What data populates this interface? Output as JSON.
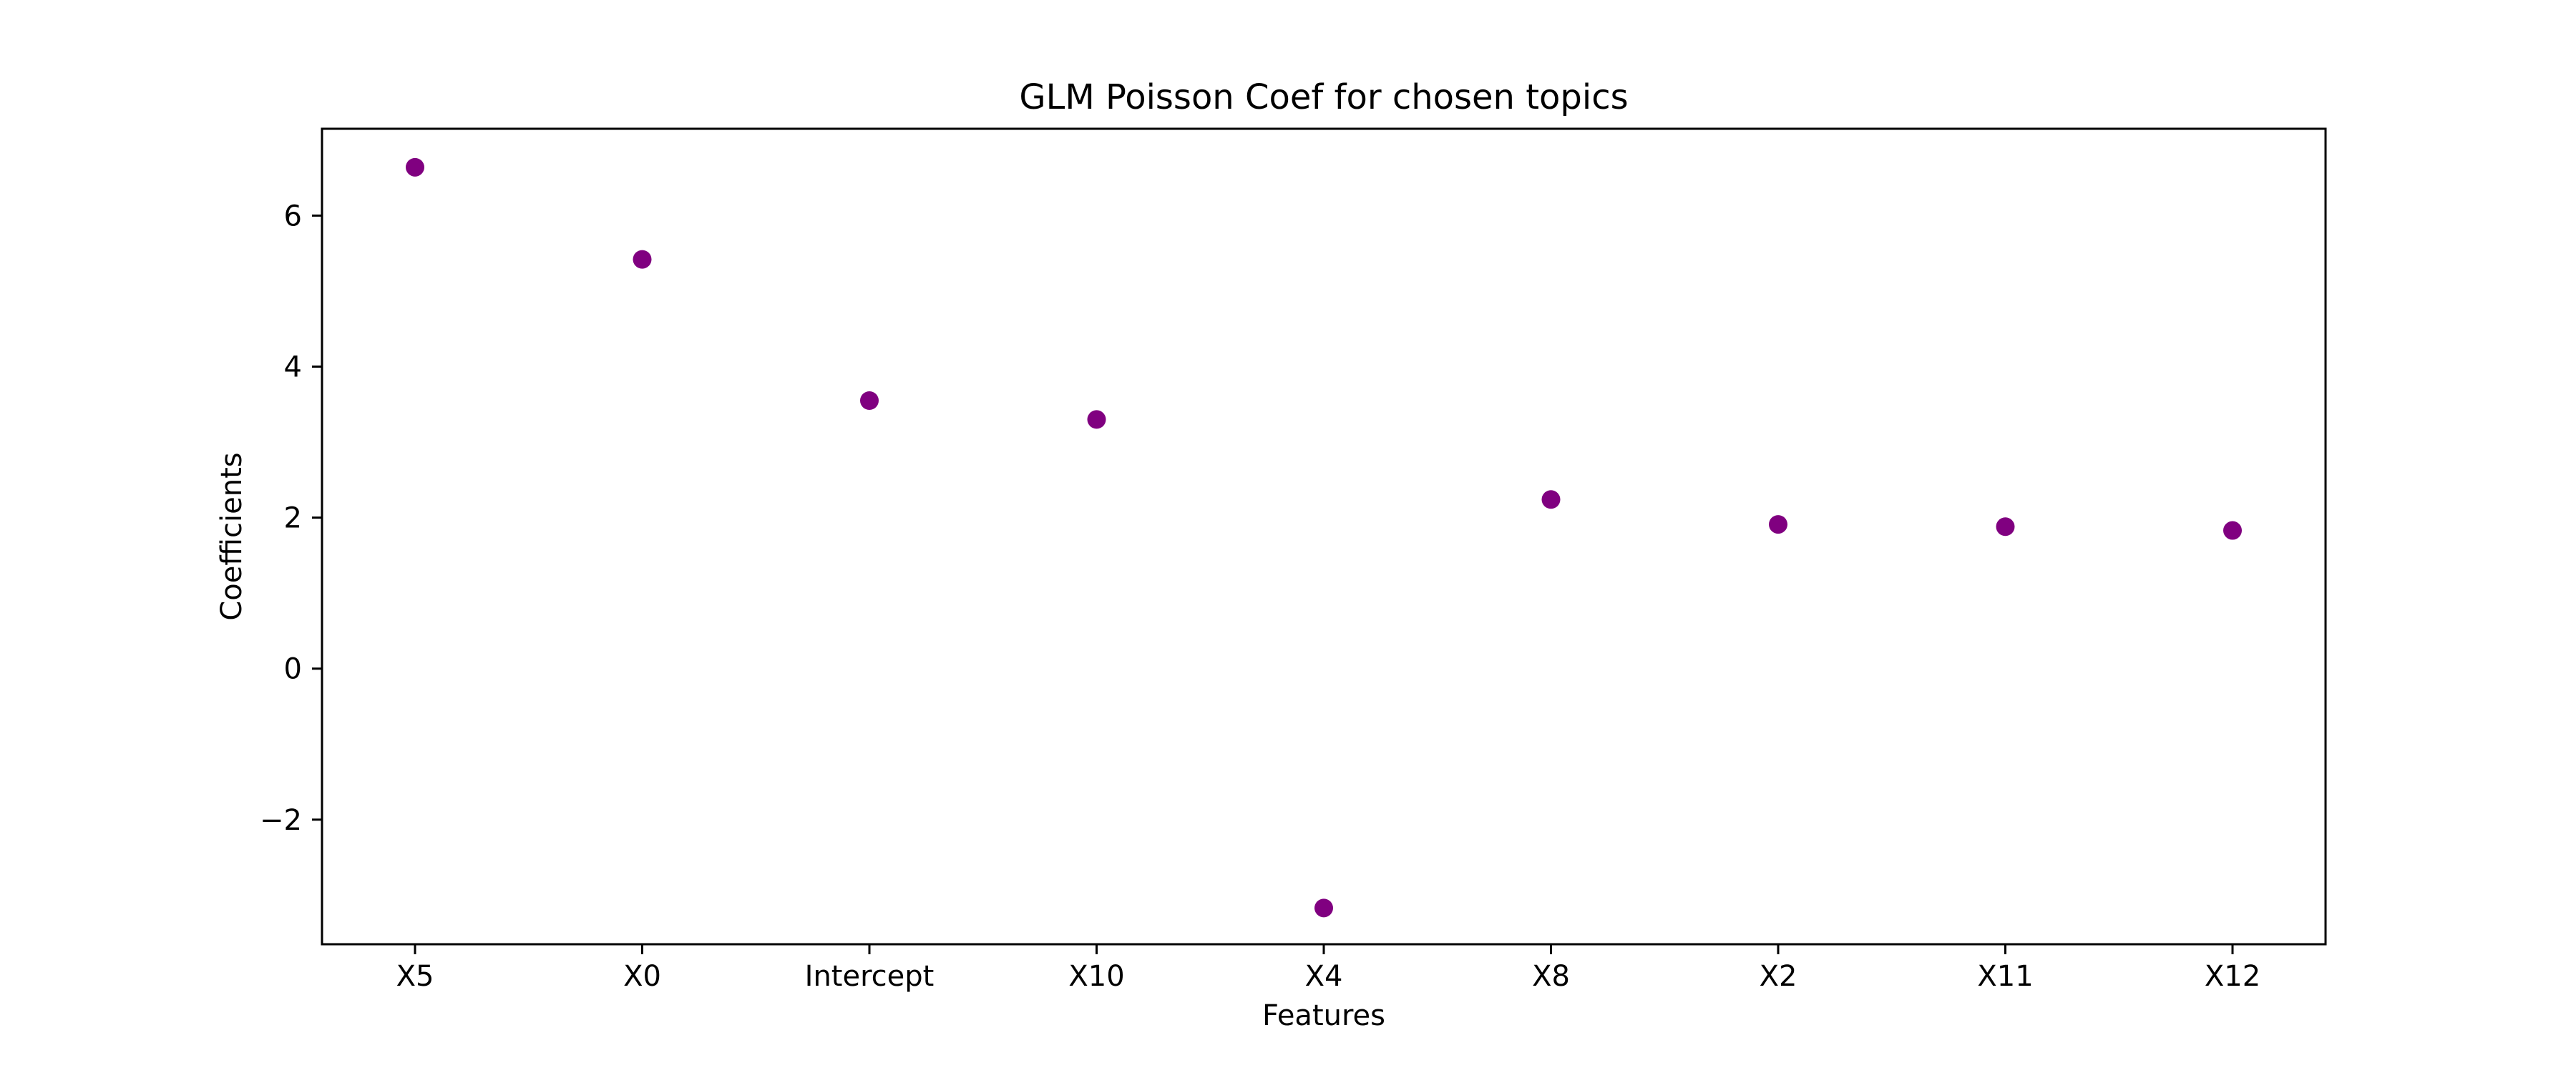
{
  "chart_data": {
    "type": "scatter",
    "title": "GLM Poisson Coef for chosen topics",
    "xlabel": "Features",
    "ylabel": "Coefficients",
    "categories": [
      "X5",
      "X0",
      "Intercept",
      "X10",
      "X4",
      "X8",
      "X2",
      "X11",
      "X12"
    ],
    "values": [
      6.64,
      5.42,
      3.55,
      3.3,
      -3.17,
      2.24,
      1.91,
      1.88,
      1.83
    ],
    "ylim": [
      -3.65,
      7.15
    ],
    "yticks": [
      -2,
      0,
      2,
      4,
      6
    ],
    "ytick_labels": [
      "−2",
      "0",
      "2",
      "4",
      "6"
    ],
    "marker_color": "#800080",
    "grid": false,
    "legend": "none"
  }
}
